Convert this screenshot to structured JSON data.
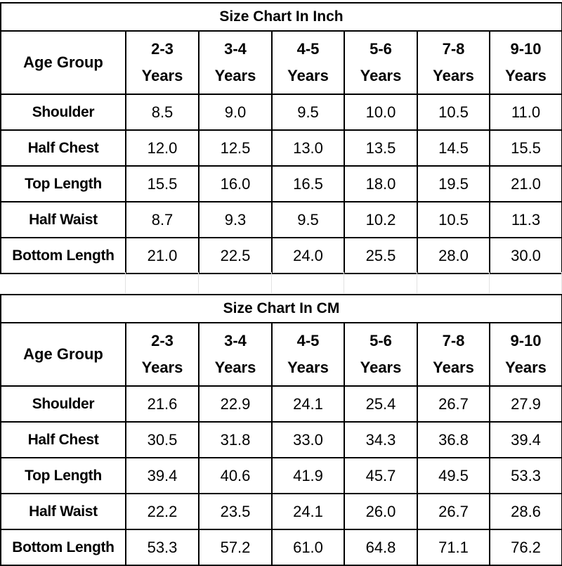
{
  "inch_chart": {
    "title": "Size Chart In Inch",
    "header_label": "Age Group",
    "age_groups": [
      {
        "range": "2-3",
        "unit": "Years"
      },
      {
        "range": "3-4",
        "unit": "Years"
      },
      {
        "range": "4-5",
        "unit": "Years"
      },
      {
        "range": "5-6",
        "unit": "Years"
      },
      {
        "range": "7-8",
        "unit": "Years"
      },
      {
        "range": "9-10",
        "unit": "Years"
      }
    ],
    "rows": [
      {
        "label": "Shoulder",
        "values": [
          "8.5",
          "9.0",
          "9.5",
          "10.0",
          "10.5",
          "11.0"
        ]
      },
      {
        "label": "Half Chest",
        "values": [
          "12.0",
          "12.5",
          "13.0",
          "13.5",
          "14.5",
          "15.5"
        ]
      },
      {
        "label": "Top Length",
        "values": [
          "15.5",
          "16.0",
          "16.5",
          "18.0",
          "19.5",
          "21.0"
        ]
      },
      {
        "label": "Half Waist",
        "values": [
          "8.7",
          "9.3",
          "9.5",
          "10.2",
          "10.5",
          "11.3"
        ]
      },
      {
        "label": "Bottom Length",
        "values": [
          "21.0",
          "22.5",
          "24.0",
          "25.5",
          "28.0",
          "30.0"
        ]
      }
    ]
  },
  "cm_chart": {
    "title": "Size Chart In CM",
    "header_label": "Age Group",
    "age_groups": [
      {
        "range": "2-3",
        "unit": "Years"
      },
      {
        "range": "3-4",
        "unit": "Years"
      },
      {
        "range": "4-5",
        "unit": "Years"
      },
      {
        "range": "5-6",
        "unit": "Years"
      },
      {
        "range": "7-8",
        "unit": "Years"
      },
      {
        "range": "9-10",
        "unit": "Years"
      }
    ],
    "rows": [
      {
        "label": "Shoulder",
        "values": [
          "21.6",
          "22.9",
          "24.1",
          "25.4",
          "26.7",
          "27.9"
        ]
      },
      {
        "label": "Half Chest",
        "values": [
          "30.5",
          "31.8",
          "33.0",
          "34.3",
          "36.8",
          "39.4"
        ]
      },
      {
        "label": "Top Length",
        "values": [
          "39.4",
          "40.6",
          "41.9",
          "45.7",
          "49.5",
          "53.3"
        ]
      },
      {
        "label": "Half Waist",
        "values": [
          "22.2",
          "23.5",
          "24.1",
          "26.0",
          "26.7",
          "28.6"
        ]
      },
      {
        "label": "Bottom Length",
        "values": [
          "53.3",
          "57.2",
          "61.0",
          "64.8",
          "71.1",
          "76.2"
        ]
      }
    ]
  }
}
